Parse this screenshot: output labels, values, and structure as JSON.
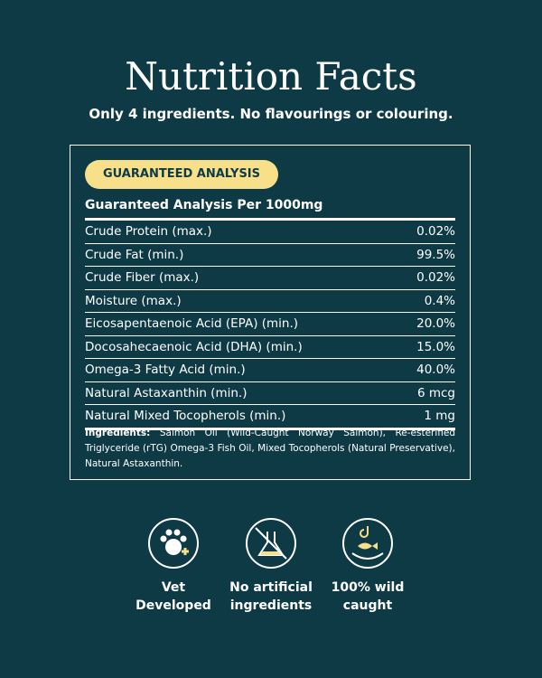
{
  "header": {
    "title": "Nutrition Facts",
    "subtitle": "Only 4 ingredients. No flavourings or colouring."
  },
  "panel": {
    "badge": "GUARANTEED ANALYSIS",
    "heading": "Guaranteed Analysis Per 1000mg",
    "rows": [
      [
        "Crude Protein (max.)",
        "0.02%"
      ],
      [
        "Crude Fat (min.)",
        "99.5%"
      ],
      [
        "Crude Fiber (max.)",
        "0.02%"
      ],
      [
        "Moisture (max.)",
        "0.4%"
      ],
      [
        "Eicosapentaenoic Acid (EPA) (min.)",
        "20.0%"
      ],
      [
        "Docosahecaenoic Acid (DHA) (min.)",
        "15.0%"
      ],
      [
        "Omega-3 Fatty Acid (min.)",
        "40.0%"
      ],
      [
        "Natural Astaxanthin (min.)",
        "6 mcg"
      ],
      [
        "Natural Mixed Tocopherols (min.)",
        "1 mg"
      ]
    ],
    "ingredients": {
      "label": "Ingredients:",
      "text": "Salmon Oil (Wild-Caught Norway Salmon), Re-esterified Triglyceride (rTG) Omega-3 Fish Oil, Mixed Tocopherols (Natural Preservative), Natural Astaxanthin."
    }
  },
  "features": [
    {
      "lines": [
        "Vet",
        "Developed"
      ]
    },
    {
      "lines": [
        "No artificial",
        "ingredients"
      ]
    },
    {
      "lines": [
        "100% wild",
        "caught"
      ]
    }
  ]
}
